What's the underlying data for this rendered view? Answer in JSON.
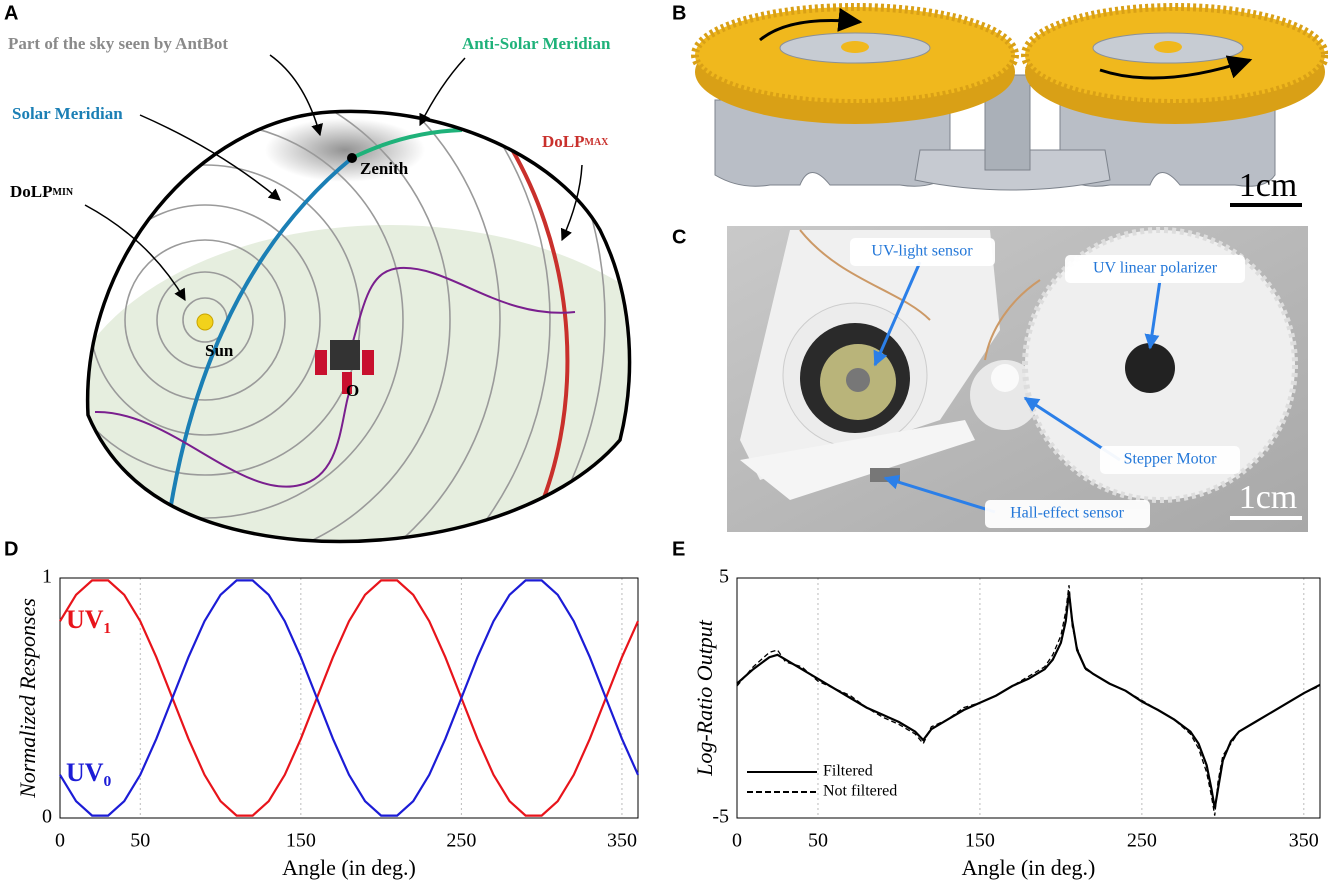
{
  "panels": {
    "a": {
      "letter": "A",
      "sky": "Part of the sky seen by AntBot",
      "anti_solar": "Anti-Solar Meridian",
      "solar": "Solar Meridian",
      "dolp_min": {
        "text": "DoLP",
        "sub": "MIN"
      },
      "dolp_max": {
        "text": "DoLP",
        "sub": "MAX"
      },
      "zenith": "Zenith",
      "sun": "Sun",
      "origin": "O"
    },
    "b": {
      "letter": "B",
      "scale": "1cm"
    },
    "c": {
      "letter": "C",
      "uv_sensor": "UV-light sensor",
      "polarizer": "UV linear polarizer",
      "motor": "Stepper Motor",
      "hall": "Hall-effect sensor",
      "scale": "1cm"
    },
    "d": {
      "letter": "D"
    },
    "e": {
      "letter": "E"
    }
  },
  "chart_data": [
    {
      "type": "line",
      "xlabel": "Angle (in deg.)",
      "ylabel": "Normalized Responses",
      "x": [
        0,
        10,
        20,
        30,
        40,
        50,
        60,
        70,
        80,
        90,
        100,
        110,
        120,
        130,
        140,
        150,
        160,
        170,
        180,
        190,
        200,
        210,
        220,
        230,
        240,
        250,
        260,
        270,
        280,
        290,
        300,
        310,
        320,
        330,
        340,
        350,
        360
      ],
      "series": [
        {
          "name": "UV₁",
          "color": "#e8141b",
          "values": [
            0.82,
            0.93,
            0.99,
            0.99,
            0.93,
            0.82,
            0.67,
            0.5,
            0.33,
            0.18,
            0.07,
            0.01,
            0.01,
            0.07,
            0.18,
            0.33,
            0.5,
            0.67,
            0.82,
            0.93,
            0.99,
            0.99,
            0.93,
            0.82,
            0.67,
            0.5,
            0.33,
            0.18,
            0.07,
            0.01,
            0.01,
            0.07,
            0.18,
            0.33,
            0.5,
            0.67,
            0.82
          ]
        },
        {
          "name": "UV₀",
          "color": "#1c1cd6",
          "values": [
            0.18,
            0.07,
            0.01,
            0.01,
            0.07,
            0.18,
            0.33,
            0.5,
            0.67,
            0.82,
            0.93,
            0.99,
            0.99,
            0.93,
            0.82,
            0.67,
            0.5,
            0.33,
            0.18,
            0.07,
            0.01,
            0.01,
            0.07,
            0.18,
            0.33,
            0.5,
            0.67,
            0.82,
            0.93,
            0.99,
            0.99,
            0.93,
            0.82,
            0.67,
            0.5,
            0.33,
            0.18
          ]
        }
      ],
      "xlim": [
        0,
        360
      ],
      "xticks": [
        0,
        50,
        150,
        250,
        350
      ],
      "ylim": [
        0,
        1
      ],
      "yticks": [
        0,
        1
      ],
      "grid": true
    },
    {
      "type": "line",
      "xlabel": "Angle (in deg.)",
      "ylabel": "Log-Ratio Output",
      "x": [
        0,
        10,
        20,
        25,
        30,
        40,
        50,
        60,
        70,
        80,
        90,
        100,
        110,
        115,
        120,
        130,
        140,
        150,
        160,
        170,
        180,
        190,
        195,
        200,
        203,
        205,
        207,
        210,
        215,
        220,
        230,
        240,
        250,
        260,
        270,
        280,
        285,
        290,
        293,
        295,
        297,
        300,
        305,
        310,
        320,
        330,
        340,
        350,
        360
      ],
      "series": [
        {
          "name": "Filtered",
          "color": "#000000",
          "style": "solid",
          "values": [
            0.6,
            1.2,
            1.7,
            1.8,
            1.6,
            1.2,
            0.8,
            0.4,
            0.0,
            -0.4,
            -0.7,
            -1.0,
            -1.4,
            -1.75,
            -1.3,
            -0.9,
            -0.5,
            -0.2,
            0.1,
            0.5,
            0.8,
            1.2,
            1.6,
            2.3,
            3.2,
            4.4,
            3.2,
            2.0,
            1.25,
            1.0,
            0.6,
            0.3,
            -0.15,
            -0.5,
            -0.9,
            -1.4,
            -1.9,
            -2.8,
            -3.8,
            -4.6,
            -3.8,
            -2.6,
            -1.8,
            -1.4,
            -1.0,
            -0.6,
            -0.2,
            0.2,
            0.55
          ]
        },
        {
          "name": "Not filtered",
          "color": "#000000",
          "style": "dashed",
          "values": [
            0.5,
            1.3,
            1.9,
            2.0,
            1.5,
            1.3,
            0.7,
            0.4,
            0.1,
            -0.4,
            -0.8,
            -1.1,
            -1.5,
            -1.9,
            -1.2,
            -0.9,
            -0.4,
            -0.2,
            0.1,
            0.5,
            0.9,
            1.3,
            1.8,
            2.6,
            3.6,
            4.7,
            3.0,
            2.1,
            1.2,
            1.0,
            0.6,
            0.3,
            -0.1,
            -0.5,
            -0.9,
            -1.5,
            -2.1,
            -3.1,
            -4.1,
            -4.9,
            -3.5,
            -2.4,
            -1.9,
            -1.4,
            -1.0,
            -0.6,
            -0.2,
            0.2,
            0.5
          ]
        }
      ],
      "xlim": [
        0,
        360
      ],
      "xticks": [
        0,
        50,
        150,
        250,
        350
      ],
      "ylim": [
        -5,
        5
      ],
      "yticks": [
        -5,
        5
      ],
      "grid": true,
      "legend": "lower left"
    }
  ]
}
